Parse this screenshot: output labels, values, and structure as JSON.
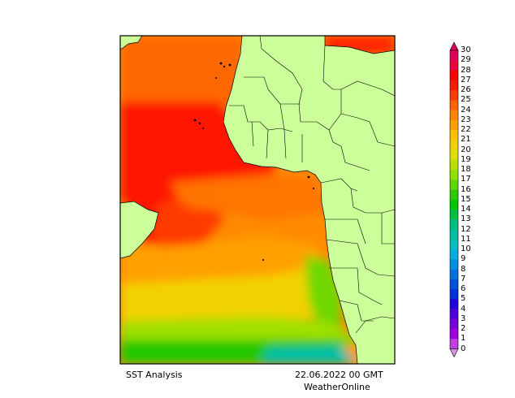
{
  "map": {
    "title": "SST Analysis",
    "date": "22.06.2022 00 GMT",
    "brand": "WeatherOnline",
    "land_color": "#ccff99",
    "border_color": "#000000"
  },
  "legend": {
    "min_marker": "▽",
    "max_marker": "△",
    "stops": [
      {
        "label": "30",
        "color": "#e0005a"
      },
      {
        "label": "29",
        "color": "#f00040"
      },
      {
        "label": "28",
        "color": "#ff0000"
      },
      {
        "label": "27",
        "color": "#ff1800"
      },
      {
        "label": "26",
        "color": "#ff3c00"
      },
      {
        "label": "25",
        "color": "#ff6000"
      },
      {
        "label": "24",
        "color": "#ff8400"
      },
      {
        "label": "23",
        "color": "#ffa000"
      },
      {
        "label": "22",
        "color": "#ffc000"
      },
      {
        "label": "21",
        "color": "#f0d000"
      },
      {
        "label": "20",
        "color": "#e0e000"
      },
      {
        "label": "19",
        "color": "#b8e000"
      },
      {
        "label": "18",
        "color": "#90e000"
      },
      {
        "label": "17",
        "color": "#60d800"
      },
      {
        "label": "16",
        "color": "#30c800"
      },
      {
        "label": "15",
        "color": "#00c800"
      },
      {
        "label": "14",
        "color": "#00c040"
      },
      {
        "label": "13",
        "color": "#00c080"
      },
      {
        "label": "12",
        "color": "#00c0a0"
      },
      {
        "label": "11",
        "color": "#00c0c0"
      },
      {
        "label": "10",
        "color": "#00b0d8"
      },
      {
        "label": "9",
        "color": "#0090e0"
      },
      {
        "label": "8",
        "color": "#0070e0"
      },
      {
        "label": "7",
        "color": "#0050e0"
      },
      {
        "label": "6",
        "color": "#0030e0"
      },
      {
        "label": "5",
        "color": "#2000e0"
      },
      {
        "label": "4",
        "color": "#5000e0"
      },
      {
        "label": "3",
        "color": "#7800e0"
      },
      {
        "label": "2",
        "color": "#a000e0"
      },
      {
        "label": "1",
        "color": "#c040e0"
      },
      {
        "label": "0",
        "color": "#d890e0"
      }
    ]
  }
}
